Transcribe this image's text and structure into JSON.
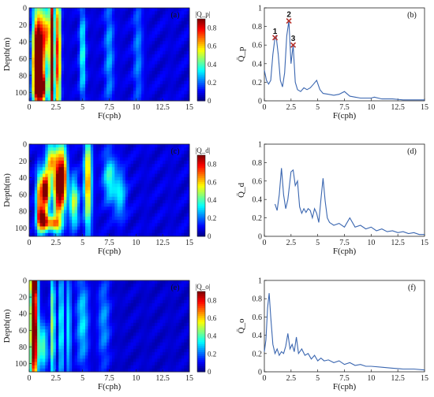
{
  "colors": {
    "axis": "#222222",
    "line": "#3a66b0",
    "marker": "#b5312b"
  },
  "chart_data": [
    {
      "id": "a",
      "type": "heatmap",
      "panel_label": "(a)",
      "xlabel": "F(cph)",
      "ylabel": "Depth(m)",
      "xlim": [
        0,
        15
      ],
      "ylim": [
        0,
        110
      ],
      "xticks": [
        "0",
        "2.5",
        "5",
        "7.5",
        "10",
        "12.5",
        "15"
      ],
      "yticks": [
        "0",
        "20",
        "40",
        "60",
        "80",
        "100"
      ],
      "colorbar": {
        "label": "|Q_p|",
        "range": [
          0,
          0.9
        ],
        "ticks": [
          "0",
          "0.2",
          "0.4",
          "0.6",
          "0.8"
        ]
      },
      "hotspots": [
        {
          "x": 1.0,
          "y": 50,
          "wx": 0.35,
          "wy": 35,
          "v": 0.9
        },
        {
          "x": 1.1,
          "y": 95,
          "wx": 0.35,
          "wy": 12,
          "v": 0.85
        },
        {
          "x": 2.1,
          "y": 55,
          "wx": 0.15,
          "wy": 80,
          "v": 0.95
        },
        {
          "x": 2.7,
          "y": 55,
          "wx": 0.18,
          "wy": 60,
          "v": 0.75
        },
        {
          "x": 0.6,
          "y": 70,
          "wx": 0.25,
          "wy": 40,
          "v": 0.5
        },
        {
          "x": 5.0,
          "y": 55,
          "wx": 0.2,
          "wy": 40,
          "v": 0.3
        },
        {
          "x": 7.5,
          "y": 55,
          "wx": 0.3,
          "wy": 50,
          "v": 0.18
        },
        {
          "x": 10.2,
          "y": 55,
          "wx": 0.3,
          "wy": 50,
          "v": 0.15
        },
        {
          "x": 1.6,
          "y": 30,
          "wx": 0.2,
          "wy": 20,
          "v": 0.45
        }
      ],
      "background": 0.12
    },
    {
      "id": "b",
      "type": "line",
      "panel_label": "(b)",
      "xlabel": "F(cph)",
      "ylabel": "Q̄_p",
      "xlim": [
        0,
        15
      ],
      "ylim": [
        0,
        1
      ],
      "xticks": [
        "0",
        "2.5",
        "5",
        "7.5",
        "10",
        "12.5",
        "15"
      ],
      "yticks": [
        "0",
        "0.2",
        "0.4",
        "0.6",
        "0.8",
        "1"
      ],
      "series": [
        {
          "x": [
            0,
            0.2,
            0.4,
            0.6,
            0.8,
            1.0,
            1.1,
            1.3,
            1.5,
            1.7,
            1.9,
            2.1,
            2.3,
            2.5,
            2.7,
            2.9,
            3.1,
            3.4,
            3.7,
            4.0,
            4.3,
            4.6,
            4.9,
            5.2,
            5.5,
            6.0,
            6.5,
            7.0,
            7.5,
            8.0,
            8.5,
            9.0,
            10.0,
            10.3,
            11.0,
            12.0,
            13.0,
            14.0,
            15.0
          ],
          "y": [
            0.33,
            0.22,
            0.18,
            0.22,
            0.5,
            0.68,
            0.7,
            0.5,
            0.22,
            0.15,
            0.3,
            0.7,
            0.86,
            0.4,
            0.6,
            0.2,
            0.12,
            0.1,
            0.14,
            0.12,
            0.14,
            0.18,
            0.22,
            0.12,
            0.08,
            0.07,
            0.06,
            0.07,
            0.1,
            0.05,
            0.04,
            0.03,
            0.03,
            0.04,
            0.02,
            0.02,
            0.01,
            0.01,
            0.01
          ]
        }
      ],
      "markers": [
        {
          "label": "1",
          "x": 1.0,
          "y": 0.68
        },
        {
          "label": "2",
          "x": 2.3,
          "y": 0.86
        },
        {
          "label": "3",
          "x": 2.7,
          "y": 0.6
        }
      ]
    },
    {
      "id": "c",
      "type": "heatmap",
      "panel_label": "(c)",
      "xlabel": "F(cph)",
      "ylabel": "Depth(m)",
      "xlim": [
        0,
        15
      ],
      "ylim": [
        0,
        110
      ],
      "xticks": [
        "0",
        "2.5",
        "5",
        "7.5",
        "10",
        "12.5",
        "15"
      ],
      "yticks": [
        "0",
        "20",
        "40",
        "60",
        "80",
        "100"
      ],
      "colorbar": {
        "label": "|Q_d|",
        "range": [
          0,
          0.9
        ],
        "ticks": [
          "0",
          "0.2",
          "0.4",
          "0.6",
          "0.8"
        ]
      },
      "hotspots": [
        {
          "x": 1.5,
          "y": 55,
          "wx": 0.3,
          "wy": 15,
          "v": 0.95
        },
        {
          "x": 1.3,
          "y": 90,
          "wx": 0.3,
          "wy": 10,
          "v": 0.8
        },
        {
          "x": 2.7,
          "y": 50,
          "wx": 0.3,
          "wy": 30,
          "v": 0.85
        },
        {
          "x": 3.2,
          "y": 40,
          "wx": 0.25,
          "wy": 25,
          "v": 0.7
        },
        {
          "x": 2.0,
          "y": 20,
          "wx": 0.3,
          "wy": 15,
          "v": 0.5
        },
        {
          "x": 5.5,
          "y": 45,
          "wx": 0.25,
          "wy": 40,
          "v": 0.6
        },
        {
          "x": 4.2,
          "y": 70,
          "wx": 0.3,
          "wy": 20,
          "v": 0.45
        },
        {
          "x": 0.9,
          "y": 70,
          "wx": 0.2,
          "wy": 25,
          "v": 0.5
        },
        {
          "x": 7.5,
          "y": 40,
          "wx": 0.4,
          "wy": 20,
          "v": 0.3
        },
        {
          "x": 8.5,
          "y": 60,
          "wx": 0.4,
          "wy": 20,
          "v": 0.25
        },
        {
          "x": 2.2,
          "y": 95,
          "wx": 0.5,
          "wy": 6,
          "v": 0.55
        }
      ],
      "background": 0.12
    },
    {
      "id": "d",
      "type": "line",
      "panel_label": "(d)",
      "xlabel": "F(cph)",
      "ylabel": "Q̄_d",
      "xlim": [
        0,
        15
      ],
      "ylim": [
        0,
        1
      ],
      "xticks": [
        "0",
        "2.5",
        "5",
        "7.5",
        "10",
        "12.5",
        "15"
      ],
      "yticks": [
        "0",
        "0.2",
        "0.4",
        "0.6",
        "0.8",
        "1"
      ],
      "series": [
        {
          "x": [
            1.0,
            1.2,
            1.4,
            1.6,
            1.8,
            2.0,
            2.2,
            2.5,
            2.7,
            2.9,
            3.1,
            3.3,
            3.5,
            3.7,
            3.9,
            4.1,
            4.3,
            4.5,
            4.7,
            4.9,
            5.1,
            5.3,
            5.5,
            5.7,
            5.9,
            6.1,
            6.5,
            7.0,
            7.5,
            8.0,
            8.5,
            9.0,
            9.5,
            10.0,
            10.5,
            11.0,
            11.5,
            12.0,
            12.5,
            13.0,
            13.5,
            14.0,
            14.5,
            15.0
          ],
          "y": [
            0.35,
            0.28,
            0.45,
            0.74,
            0.45,
            0.3,
            0.4,
            0.7,
            0.72,
            0.55,
            0.6,
            0.32,
            0.25,
            0.3,
            0.26,
            0.3,
            0.28,
            0.2,
            0.3,
            0.25,
            0.15,
            0.4,
            0.63,
            0.38,
            0.2,
            0.15,
            0.12,
            0.14,
            0.1,
            0.2,
            0.1,
            0.12,
            0.08,
            0.1,
            0.06,
            0.08,
            0.05,
            0.06,
            0.04,
            0.05,
            0.03,
            0.04,
            0.02,
            0.02
          ]
        }
      ]
    },
    {
      "id": "e",
      "type": "heatmap",
      "panel_label": "(e)",
      "xlabel": "F(cph)",
      "ylabel": "Depth(m)",
      "xlim": [
        0,
        15
      ],
      "ylim": [
        0,
        110
      ],
      "xticks": [
        "0",
        "2.5",
        "5",
        "7.5",
        "10",
        "12.5",
        "15"
      ],
      "yticks": [
        "0",
        "20",
        "40",
        "60",
        "80",
        "100"
      ],
      "colorbar": {
        "label": "|Q_o|",
        "range": [
          0,
          0.9
        ],
        "ticks": [
          "0",
          "0.2",
          "0.4",
          "0.6",
          "0.8"
        ]
      },
      "hotspots": [
        {
          "x": 0.45,
          "y": 60,
          "wx": 0.25,
          "wy": 55,
          "v": 1.0
        },
        {
          "x": 0.45,
          "y": 5,
          "wx": 0.2,
          "wy": 8,
          "v": 0.7
        },
        {
          "x": 2.2,
          "y": 55,
          "wx": 0.15,
          "wy": 55,
          "v": 0.45
        },
        {
          "x": 3.0,
          "y": 55,
          "wx": 0.15,
          "wy": 55,
          "v": 0.35
        },
        {
          "x": 3.7,
          "y": 55,
          "wx": 0.15,
          "wy": 50,
          "v": 0.3
        },
        {
          "x": 5.0,
          "y": 50,
          "wx": 0.4,
          "wy": 40,
          "v": 0.25
        },
        {
          "x": 7.0,
          "y": 50,
          "wx": 0.4,
          "wy": 40,
          "v": 0.18
        },
        {
          "x": 1.3,
          "y": 80,
          "wx": 0.3,
          "wy": 20,
          "v": 0.35
        }
      ],
      "background": 0.1
    },
    {
      "id": "f",
      "type": "line",
      "panel_label": "(f)",
      "xlabel": "F(cph)",
      "ylabel": "Q̄_o",
      "xlim": [
        0,
        15
      ],
      "ylim": [
        0,
        1
      ],
      "xticks": [
        "0",
        "2.5",
        "5",
        "7.5",
        "10",
        "12.5",
        "15"
      ],
      "yticks": [
        "0",
        "0.2",
        "0.4",
        "0.6",
        "0.8",
        "1"
      ],
      "series": [
        {
          "x": [
            0,
            0.15,
            0.3,
            0.45,
            0.6,
            0.8,
            1.0,
            1.2,
            1.4,
            1.6,
            1.8,
            2.0,
            2.2,
            2.4,
            2.6,
            2.8,
            3.0,
            3.2,
            3.5,
            3.8,
            4.1,
            4.4,
            4.7,
            5.0,
            5.3,
            5.6,
            6.0,
            6.5,
            7.0,
            7.5,
            8.0,
            8.5,
            9.0,
            9.5,
            10.0,
            11.0,
            12.0,
            13.0,
            14.0,
            15.0
          ],
          "y": [
            0.22,
            0.35,
            0.7,
            0.86,
            0.6,
            0.3,
            0.2,
            0.25,
            0.18,
            0.22,
            0.2,
            0.28,
            0.42,
            0.25,
            0.3,
            0.22,
            0.38,
            0.2,
            0.25,
            0.18,
            0.2,
            0.14,
            0.18,
            0.12,
            0.15,
            0.12,
            0.13,
            0.1,
            0.12,
            0.08,
            0.1,
            0.07,
            0.08,
            0.06,
            0.06,
            0.05,
            0.04,
            0.03,
            0.03,
            0.02
          ]
        }
      ]
    }
  ]
}
